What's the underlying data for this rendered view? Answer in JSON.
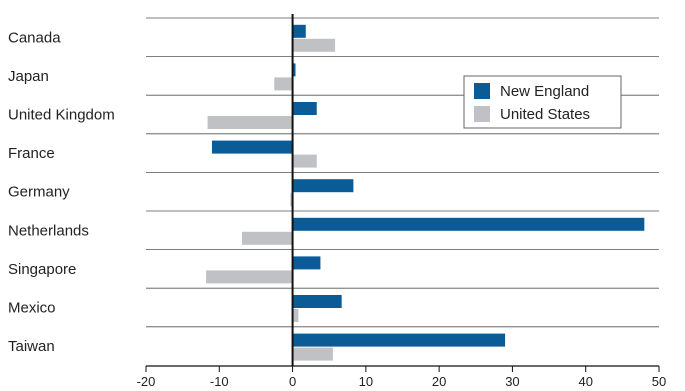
{
  "chart_data": {
    "type": "bar",
    "orientation": "horizontal",
    "categories": [
      "Canada",
      "Japan",
      "United Kingdom",
      "France",
      "Germany",
      "Netherlands",
      "Singapore",
      "Mexico",
      "Taiwan"
    ],
    "series": [
      {
        "name": "New England",
        "color": "#0b5c96",
        "values": [
          1.8,
          0.4,
          3.3,
          -11,
          8.3,
          48,
          3.8,
          6.7,
          29
        ]
      },
      {
        "name": "United States",
        "color": "#bfc1c4",
        "values": [
          5.8,
          -2.5,
          -11.6,
          3.3,
          -0.3,
          -6.9,
          -11.8,
          0.8,
          5.5
        ]
      }
    ],
    "xlim": [
      -20,
      50
    ],
    "xticks": [
      "-20",
      "-10",
      "0",
      "10",
      "20",
      "30",
      "40",
      "50"
    ],
    "title": "",
    "xlabel": "",
    "ylabel": "",
    "grid": "horizontal separators between categories",
    "legend": "top-right"
  }
}
